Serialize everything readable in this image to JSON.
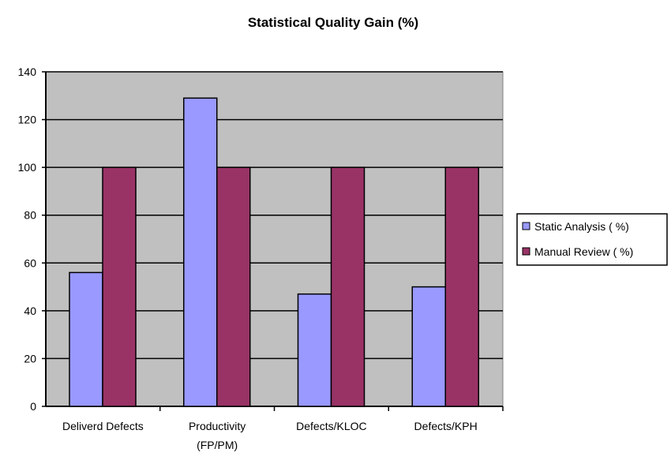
{
  "chart_data": {
    "type": "bar",
    "title": "Statistical Quality Gain (%)",
    "xlabel": "",
    "ylabel": "",
    "ylim": [
      0,
      140
    ],
    "yticks": [
      0,
      20,
      40,
      60,
      80,
      100,
      120,
      140
    ],
    "grid": true,
    "legend_position": "right",
    "categories": [
      [
        "Deliverd Defects"
      ],
      [
        "Productivity",
        "(FP/PM)"
      ],
      [
        "Defects/KLOC"
      ],
      [
        "Defects/KPH"
      ]
    ],
    "series": [
      {
        "name": "Static Analysis ( %)",
        "color": "#9999ff",
        "values": [
          56,
          129,
          47,
          50
        ]
      },
      {
        "name": "Manual Review  ( %)",
        "color": "#993366",
        "values": [
          100,
          100,
          100,
          100
        ]
      }
    ],
    "plot_background": "#c0c0c0"
  }
}
